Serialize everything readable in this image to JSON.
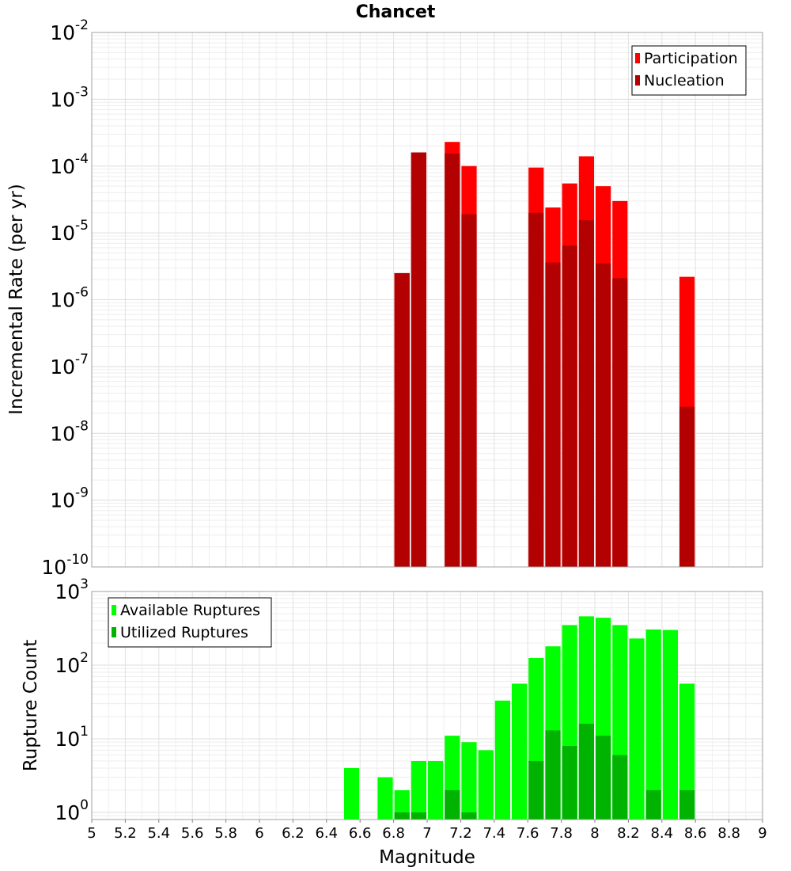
{
  "title": "Chancet",
  "chart_data": [
    {
      "type": "bar",
      "scale": "log",
      "ylabel": "Incremental Rate (per yr)",
      "ylim": [
        1e-10,
        0.01
      ],
      "xlim": [
        5,
        9
      ],
      "y_tick_exponents": [
        "-10",
        "-9",
        "-8",
        "-7",
        "-6",
        "-5",
        "-4",
        "-3",
        "-2"
      ],
      "y_tick_base": "10",
      "grid": true,
      "legend_placement": "top-right",
      "series": [
        {
          "name": "Participation",
          "color": "#ff0000",
          "points": [
            {
              "x": 6.85,
              "y": 2.5e-06
            },
            {
              "x": 6.95,
              "y": 0.00016
            },
            {
              "x": 7.15,
              "y": 0.00023
            },
            {
              "x": 7.25,
              "y": 0.0001
            },
            {
              "x": 7.65,
              "y": 9.5e-05
            },
            {
              "x": 7.75,
              "y": 2.4e-05
            },
            {
              "x": 7.85,
              "y": 5.5e-05
            },
            {
              "x": 7.95,
              "y": 0.00014
            },
            {
              "x": 8.05,
              "y": 5e-05
            },
            {
              "x": 8.15,
              "y": 3e-05
            },
            {
              "x": 8.55,
              "y": 2.2e-06
            }
          ]
        },
        {
          "name": "Nucleation",
          "color": "#b30000",
          "points": [
            {
              "x": 6.85,
              "y": 2.5e-06
            },
            {
              "x": 6.95,
              "y": 0.00016
            },
            {
              "x": 7.15,
              "y": 0.000155
            },
            {
              "x": 7.25,
              "y": 1.9e-05
            },
            {
              "x": 7.65,
              "y": 2e-05
            },
            {
              "x": 7.75,
              "y": 3.6e-06
            },
            {
              "x": 7.85,
              "y": 6.5e-06
            },
            {
              "x": 7.95,
              "y": 1.55e-05
            },
            {
              "x": 8.05,
              "y": 3.5e-06
            },
            {
              "x": 8.15,
              "y": 2.1e-06
            },
            {
              "x": 8.55,
              "y": 2.5e-08
            }
          ]
        }
      ]
    },
    {
      "type": "bar",
      "scale": "log",
      "ylabel": "Rupture Count",
      "xlabel": "Magnitude",
      "ylim": [
        0.8,
        1000
      ],
      "xlim": [
        5,
        9
      ],
      "y_tick_exponents": [
        "0",
        "1",
        "2",
        "3"
      ],
      "y_tick_base": "10",
      "x_ticks": [
        "5",
        "5.2",
        "5.4",
        "5.6",
        "5.8",
        "6",
        "6.2",
        "6.4",
        "6.6",
        "6.8",
        "7",
        "7.2",
        "7.4",
        "7.6",
        "7.8",
        "8",
        "8.2",
        "8.4",
        "8.6",
        "8.8",
        "9"
      ],
      "grid": true,
      "legend_placement": "top-left",
      "series": [
        {
          "name": "Available Ruptures",
          "color": "#00ff00",
          "points": [
            {
              "x": 6.55,
              "y": 4
            },
            {
              "x": 6.75,
              "y": 3
            },
            {
              "x": 6.85,
              "y": 2
            },
            {
              "x": 6.95,
              "y": 5
            },
            {
              "x": 7.05,
              "y": 5
            },
            {
              "x": 7.15,
              "y": 11
            },
            {
              "x": 7.25,
              "y": 9
            },
            {
              "x": 7.35,
              "y": 7
            },
            {
              "x": 7.45,
              "y": 33
            },
            {
              "x": 7.55,
              "y": 56
            },
            {
              "x": 7.65,
              "y": 125
            },
            {
              "x": 7.75,
              "y": 180
            },
            {
              "x": 7.85,
              "y": 350
            },
            {
              "x": 7.95,
              "y": 460
            },
            {
              "x": 8.05,
              "y": 440
            },
            {
              "x": 8.15,
              "y": 350
            },
            {
              "x": 8.25,
              "y": 230
            },
            {
              "x": 8.35,
              "y": 305
            },
            {
              "x": 8.45,
              "y": 300
            },
            {
              "x": 8.55,
              "y": 56
            }
          ]
        },
        {
          "name": "Utilized Ruptures",
          "color": "#00b300",
          "points": [
            {
              "x": 6.85,
              "y": 1
            },
            {
              "x": 6.95,
              "y": 1
            },
            {
              "x": 7.15,
              "y": 2
            },
            {
              "x": 7.25,
              "y": 1
            },
            {
              "x": 7.65,
              "y": 5
            },
            {
              "x": 7.75,
              "y": 13
            },
            {
              "x": 7.85,
              "y": 8
            },
            {
              "x": 7.95,
              "y": 16
            },
            {
              "x": 8.05,
              "y": 11
            },
            {
              "x": 8.15,
              "y": 6
            },
            {
              "x": 8.35,
              "y": 2
            },
            {
              "x": 8.55,
              "y": 2
            }
          ]
        }
      ]
    }
  ]
}
